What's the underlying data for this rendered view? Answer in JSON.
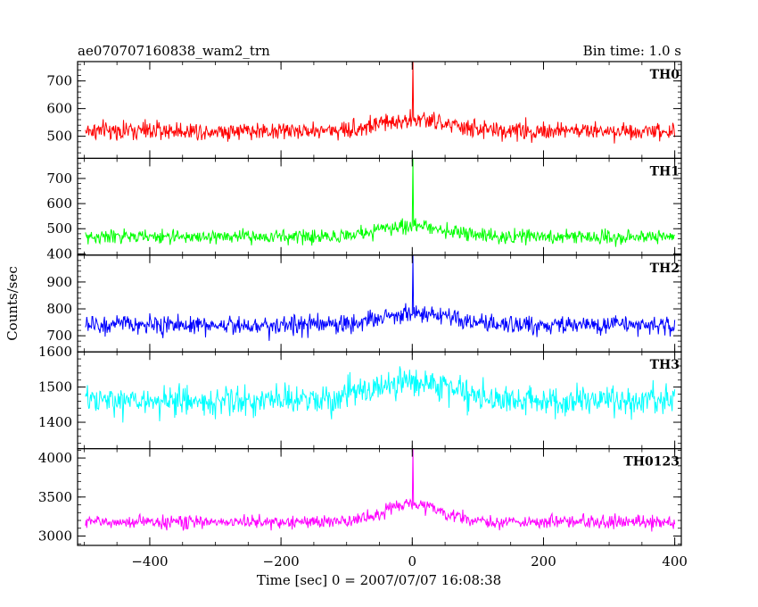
{
  "header": {
    "object_name": "ae070707160838_wam2_trn",
    "bin_time": "Bin time: 1.0 s"
  },
  "chart_data": {
    "type": "line",
    "title": "ae070707160838_wam2_trn",
    "subtitle": "Bin time: 1.0 s",
    "xlabel": "Time [sec] 0 = 2007/07/07 16:08:38",
    "ylabel": "Counts/sec",
    "xlim": [
      -510,
      410
    ],
    "x_ticks": [
      -400,
      -200,
      0,
      200,
      400
    ],
    "x_tick_labels": [
      "−400",
      "−200",
      "0",
      "200",
      "400"
    ],
    "x_range": [
      -498,
      400
    ],
    "grid": false,
    "panels": [
      {
        "name": "TH0",
        "color": "#ff0000",
        "ylim": [
          420,
          770
        ],
        "y_ticks": [
          500,
          600,
          700
        ],
        "baseline": 520,
        "noise": 30,
        "bump_amplitude": 40,
        "bump_width": 70,
        "spike_x": 1,
        "spike_peak": 770
      },
      {
        "name": "TH1",
        "color": "#00ff00",
        "ylim": [
          395,
          780
        ],
        "y_ticks": [
          400,
          500,
          600,
          700
        ],
        "baseline": 468,
        "noise": 25,
        "bump_amplitude": 45,
        "bump_width": 70,
        "spike_x": 1,
        "spike_peak": 780
      },
      {
        "name": "TH2",
        "color": "#0000ff",
        "ylim": [
          640,
          1000
        ],
        "y_ticks": [
          700,
          800,
          900
        ],
        "baseline": 740,
        "noise": 32,
        "bump_amplitude": 45,
        "bump_width": 70,
        "spike_x": 1,
        "spike_peak": 1000
      },
      {
        "name": "TH3",
        "color": "#00ffff",
        "ylim": [
          1325,
          1600
        ],
        "y_ticks": [
          1400,
          1500,
          1600
        ],
        "baseline": 1460,
        "noise": 38,
        "bump_amplitude": 55,
        "bump_width": 90,
        "spike_x": null,
        "spike_peak": null
      },
      {
        "name": "TH0123",
        "color": "#ff00ff",
        "ylim": [
          2880,
          4120
        ],
        "y_ticks": [
          3000,
          3500,
          4000
        ],
        "baseline": 3180,
        "noise": 75,
        "bump_amplitude": 230,
        "bump_width": 60,
        "spike_x": 1,
        "spike_peak": 4120
      }
    ]
  }
}
